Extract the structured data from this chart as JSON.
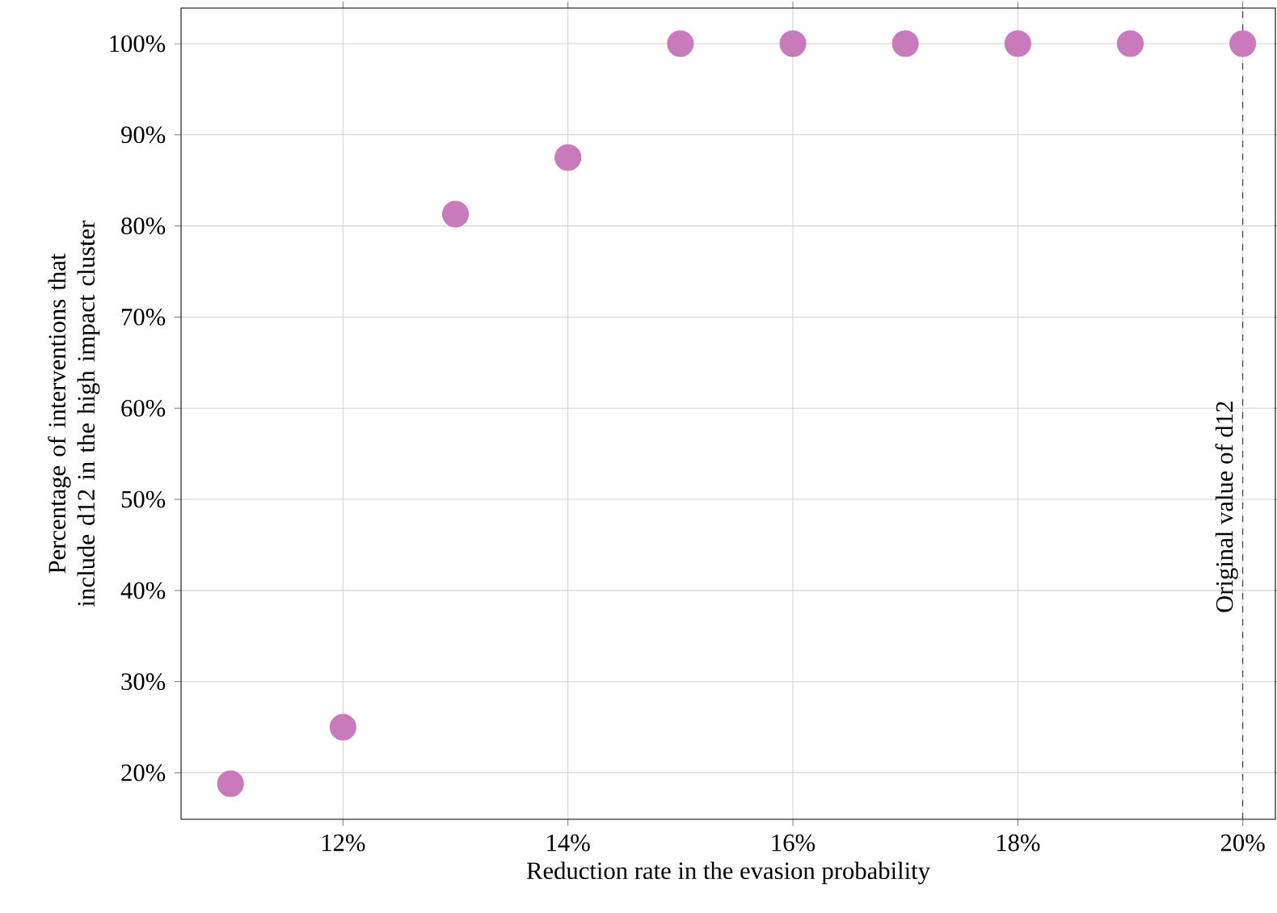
{
  "chart_data": {
    "type": "scatter",
    "xlabel": "Reduction rate in the evasion probability",
    "ylabel": "Percentage of interventions that include d12 in the high impact cluster",
    "x": [
      11,
      12,
      13,
      14,
      15,
      16,
      17,
      18,
      19,
      20
    ],
    "values": [
      18.8,
      25,
      81.3,
      87.5,
      100,
      100,
      100,
      100,
      100,
      100
    ],
    "color": "#c97abd",
    "marker": "circle",
    "grid": true,
    "xlim": [
      10.56,
      20.29
    ],
    "ylim": [
      14.9,
      103.9
    ],
    "xticks": [
      {
        "value": 12,
        "label": "12%"
      },
      {
        "value": 14,
        "label": "14%"
      },
      {
        "value": 16,
        "label": "16%"
      },
      {
        "value": 18,
        "label": "18%"
      },
      {
        "value": 20,
        "label": "20%"
      }
    ],
    "yticks": [
      {
        "value": 20,
        "label": "20%"
      },
      {
        "value": 30,
        "label": "30%"
      },
      {
        "value": 40,
        "label": "40%"
      },
      {
        "value": 50,
        "label": "50%"
      },
      {
        "value": 60,
        "label": "60%"
      },
      {
        "value": 70,
        "label": "70%"
      },
      {
        "value": 80,
        "label": "80%"
      },
      {
        "value": 90,
        "label": "90%"
      },
      {
        "value": 100,
        "label": "100%"
      }
    ],
    "ref_lines": [
      {
        "axis": "x",
        "value": 20,
        "label": "Original value of d12",
        "color": "#1a1aff",
        "line_style": "dashed"
      }
    ]
  }
}
